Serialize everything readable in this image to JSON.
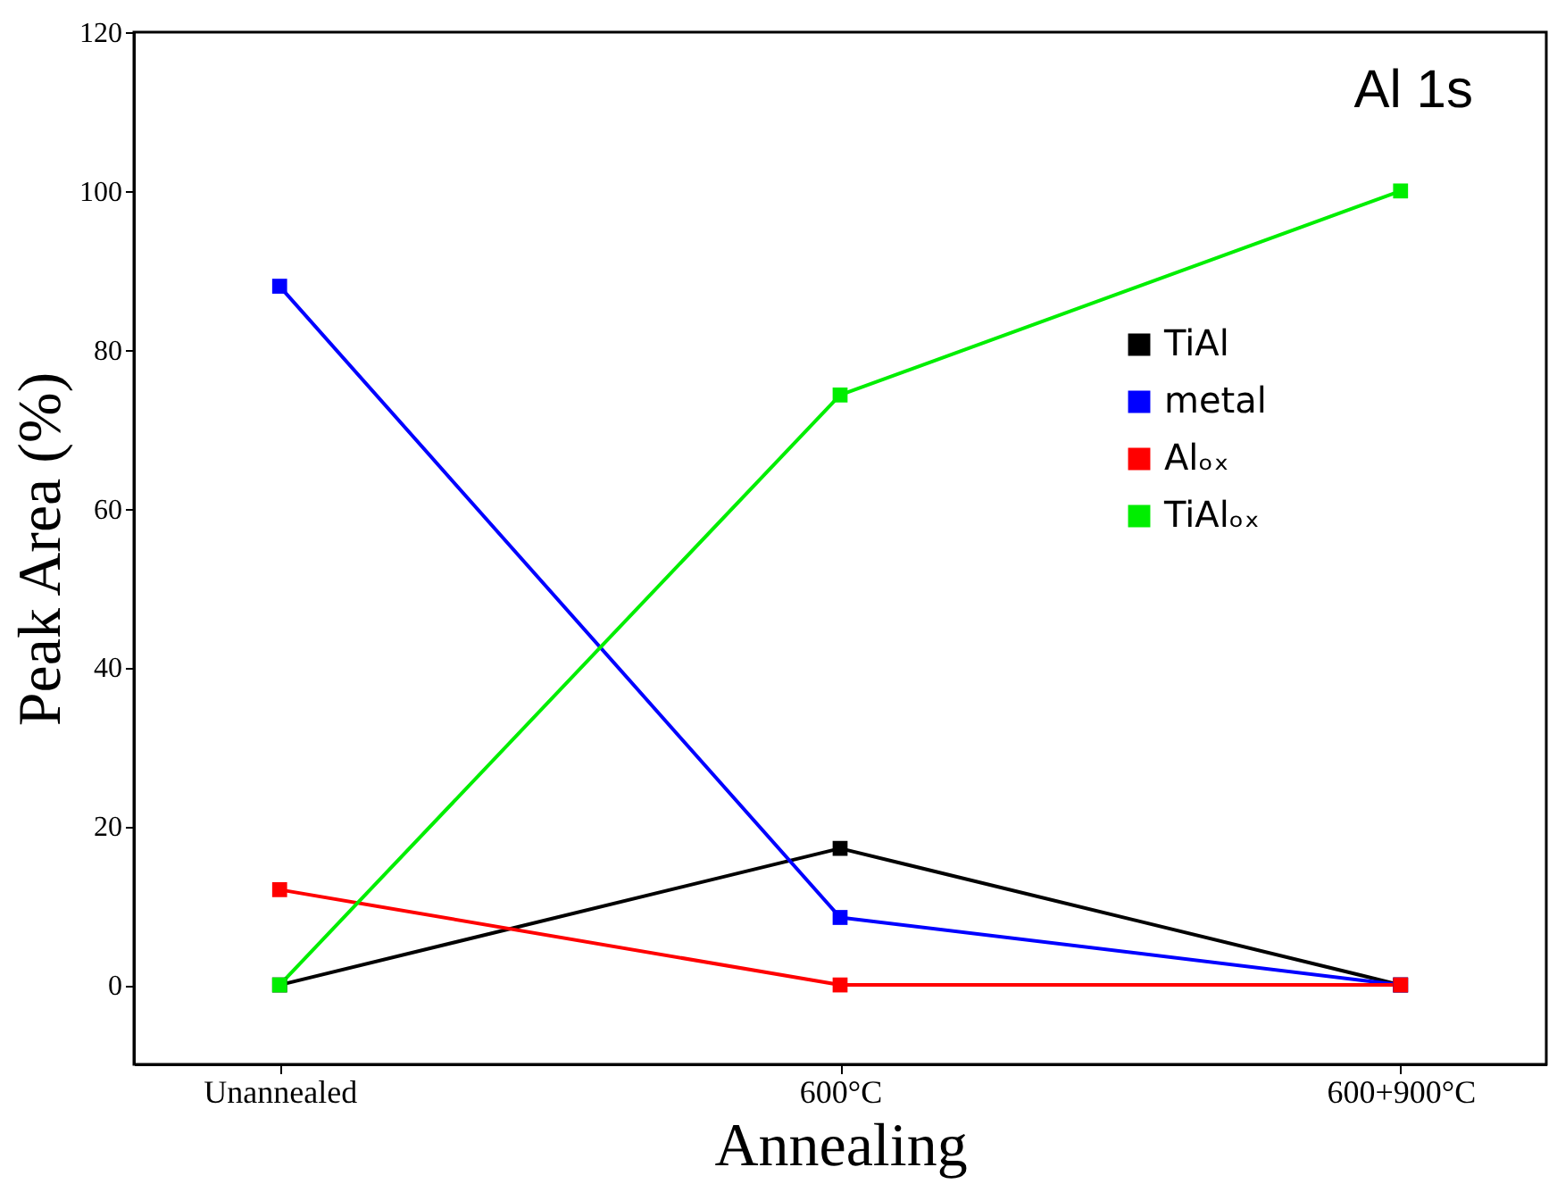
{
  "chart_data": {
    "type": "line",
    "xlabel": "Annealing",
    "ylabel": "Peak Area (%)",
    "categories": [
      "Unannealed",
      "600°C",
      "600+900°C"
    ],
    "series": [
      {
        "name": "TiAl",
        "color": "#000000",
        "values": [
          0,
          17.2,
          0
        ]
      },
      {
        "name": "metal",
        "color": "#0000ff",
        "values": [
          88,
          8.5,
          0
        ]
      },
      {
        "name": "Alₒₓ",
        "color": "#ff0000",
        "values": [
          12,
          0,
          0
        ]
      },
      {
        "name": "TiAlₒₓ",
        "color": "#00ee00",
        "values": [
          0,
          74.3,
          100
        ]
      }
    ],
    "ylim": [
      -10,
      120
    ],
    "yticks": [
      0,
      20,
      40,
      60,
      80,
      100,
      120
    ],
    "annotations": [
      "Al 1s"
    ],
    "legend": "right",
    "grid": false,
    "marker": "square",
    "line_style": "solid"
  }
}
